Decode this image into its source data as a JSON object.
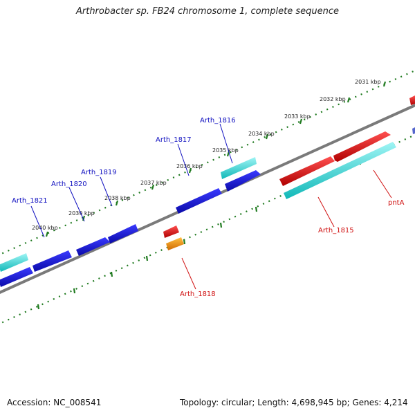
{
  "title": "Arthrobacter sp. FB24 chromosome 1, complete sequence",
  "footer": {
    "accession_prefix": "Accession: ",
    "accession": "NC_008541",
    "topology_text": "Topology: circular; Length: 4,698,945 bp; Genes: 4,214"
  },
  "colors": {
    "backbone": "#7a7a7a",
    "ruler": "#1f7a1f",
    "gene_blue": "#1010d0",
    "gene_cyan": "#1ad0d0",
    "gene_red": "#e01010",
    "gene_orange": "#f08a00",
    "label_blue": "#1010c0",
    "label_red": "#d01010"
  },
  "ruler_labels": [
    "2031 kbp",
    "2032 kbp",
    "2033 kbp",
    "2034 kbp",
    "2035 kbp",
    "2036 kbp",
    "2037 kbp",
    "2038 kbp",
    "2039 kbp",
    "2040 kbp"
  ],
  "gene_labels": [
    {
      "text": "Arth_1816",
      "color": "label_blue"
    },
    {
      "text": "Arth_1817",
      "color": "label_blue"
    },
    {
      "text": "Arth_1819",
      "color": "label_blue"
    },
    {
      "text": "Arth_1820",
      "color": "label_blue"
    },
    {
      "text": "Arth_1821",
      "color": "label_blue"
    },
    {
      "text": "pntA",
      "color": "label_red"
    },
    {
      "text": "Arth_1815",
      "color": "label_red"
    },
    {
      "text": "Arth_1818",
      "color": "label_red"
    }
  ]
}
